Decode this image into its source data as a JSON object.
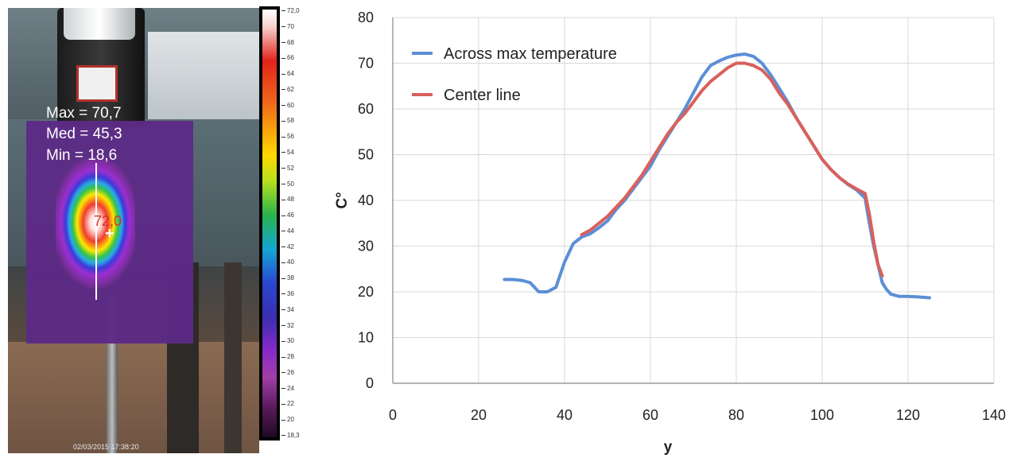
{
  "thermal_image": {
    "stats": {
      "max_label": "Max = 70,7",
      "med_label": "Med = 45,3",
      "min_label": "Min = 18,6"
    },
    "spot_value": "72,0",
    "timestamp": "02/03/2015 17:38:20",
    "scale_labels": [
      "72,0",
      "70",
      "68",
      "66",
      "64",
      "62",
      "60",
      "58",
      "56",
      "54",
      "52",
      "50",
      "48",
      "46",
      "44",
      "42",
      "40",
      "38",
      "36",
      "34",
      "32",
      "30",
      "28",
      "26",
      "24",
      "22",
      "20",
      "18,3"
    ]
  },
  "chart_data": {
    "type": "line",
    "title": "",
    "xlabel": "y",
    "ylabel": "C°",
    "xlim": [
      0,
      140
    ],
    "ylim": [
      0,
      80
    ],
    "xticks": [
      0,
      20,
      40,
      60,
      80,
      100,
      120,
      140
    ],
    "yticks": [
      0,
      10,
      20,
      30,
      40,
      50,
      60,
      70,
      80
    ],
    "grid": true,
    "legend_position": "top-left",
    "series": [
      {
        "name": "Across max temperature",
        "color": "#5b8fd6",
        "x": [
          26,
          28,
          30,
          32,
          34,
          36,
          38,
          40,
          42,
          44,
          46,
          48,
          50,
          52,
          54,
          56,
          58,
          60,
          62,
          64,
          66,
          68,
          70,
          72,
          74,
          76,
          78,
          80,
          82,
          84,
          86,
          88,
          90,
          92,
          94,
          96,
          98,
          100,
          102,
          104,
          106,
          108,
          110,
          111,
          112,
          113,
          114,
          115,
          116,
          118,
          120,
          122,
          125
        ],
        "y": [
          22.7,
          22.7,
          22.5,
          22,
          20,
          20,
          21,
          26.5,
          30.5,
          32,
          32.7,
          34,
          35.5,
          38,
          40,
          42.5,
          45,
          47.5,
          51,
          54,
          57,
          60,
          63.5,
          67,
          69.5,
          70.5,
          71.3,
          71.8,
          72,
          71.5,
          70,
          67.5,
          64.5,
          61.5,
          58,
          55,
          52,
          49,
          46.8,
          45,
          43.5,
          42.3,
          40.5,
          35,
          30,
          26,
          22,
          20.5,
          19.5,
          19,
          19,
          18.9,
          18.7
        ]
      },
      {
        "name": "Center line",
        "color": "#d9605c",
        "x": [
          44,
          46,
          48,
          50,
          52,
          54,
          56,
          58,
          60,
          62,
          64,
          66,
          68,
          70,
          72,
          74,
          76,
          78,
          80,
          82,
          84,
          86,
          88,
          90,
          92,
          94,
          96,
          98,
          100,
          102,
          104,
          106,
          108,
          110,
          111,
          112,
          113,
          114
        ],
        "y": [
          32.5,
          33.5,
          35,
          36.5,
          38.5,
          40.5,
          43,
          45.5,
          48.5,
          51.5,
          54.5,
          57,
          59,
          61.5,
          64,
          66,
          67.5,
          69,
          70,
          70,
          69.5,
          68.5,
          66.5,
          63.5,
          61,
          58,
          55,
          52,
          49,
          46.8,
          45,
          43.6,
          42.5,
          41.5,
          37,
          31,
          26,
          23.5
        ]
      }
    ]
  }
}
